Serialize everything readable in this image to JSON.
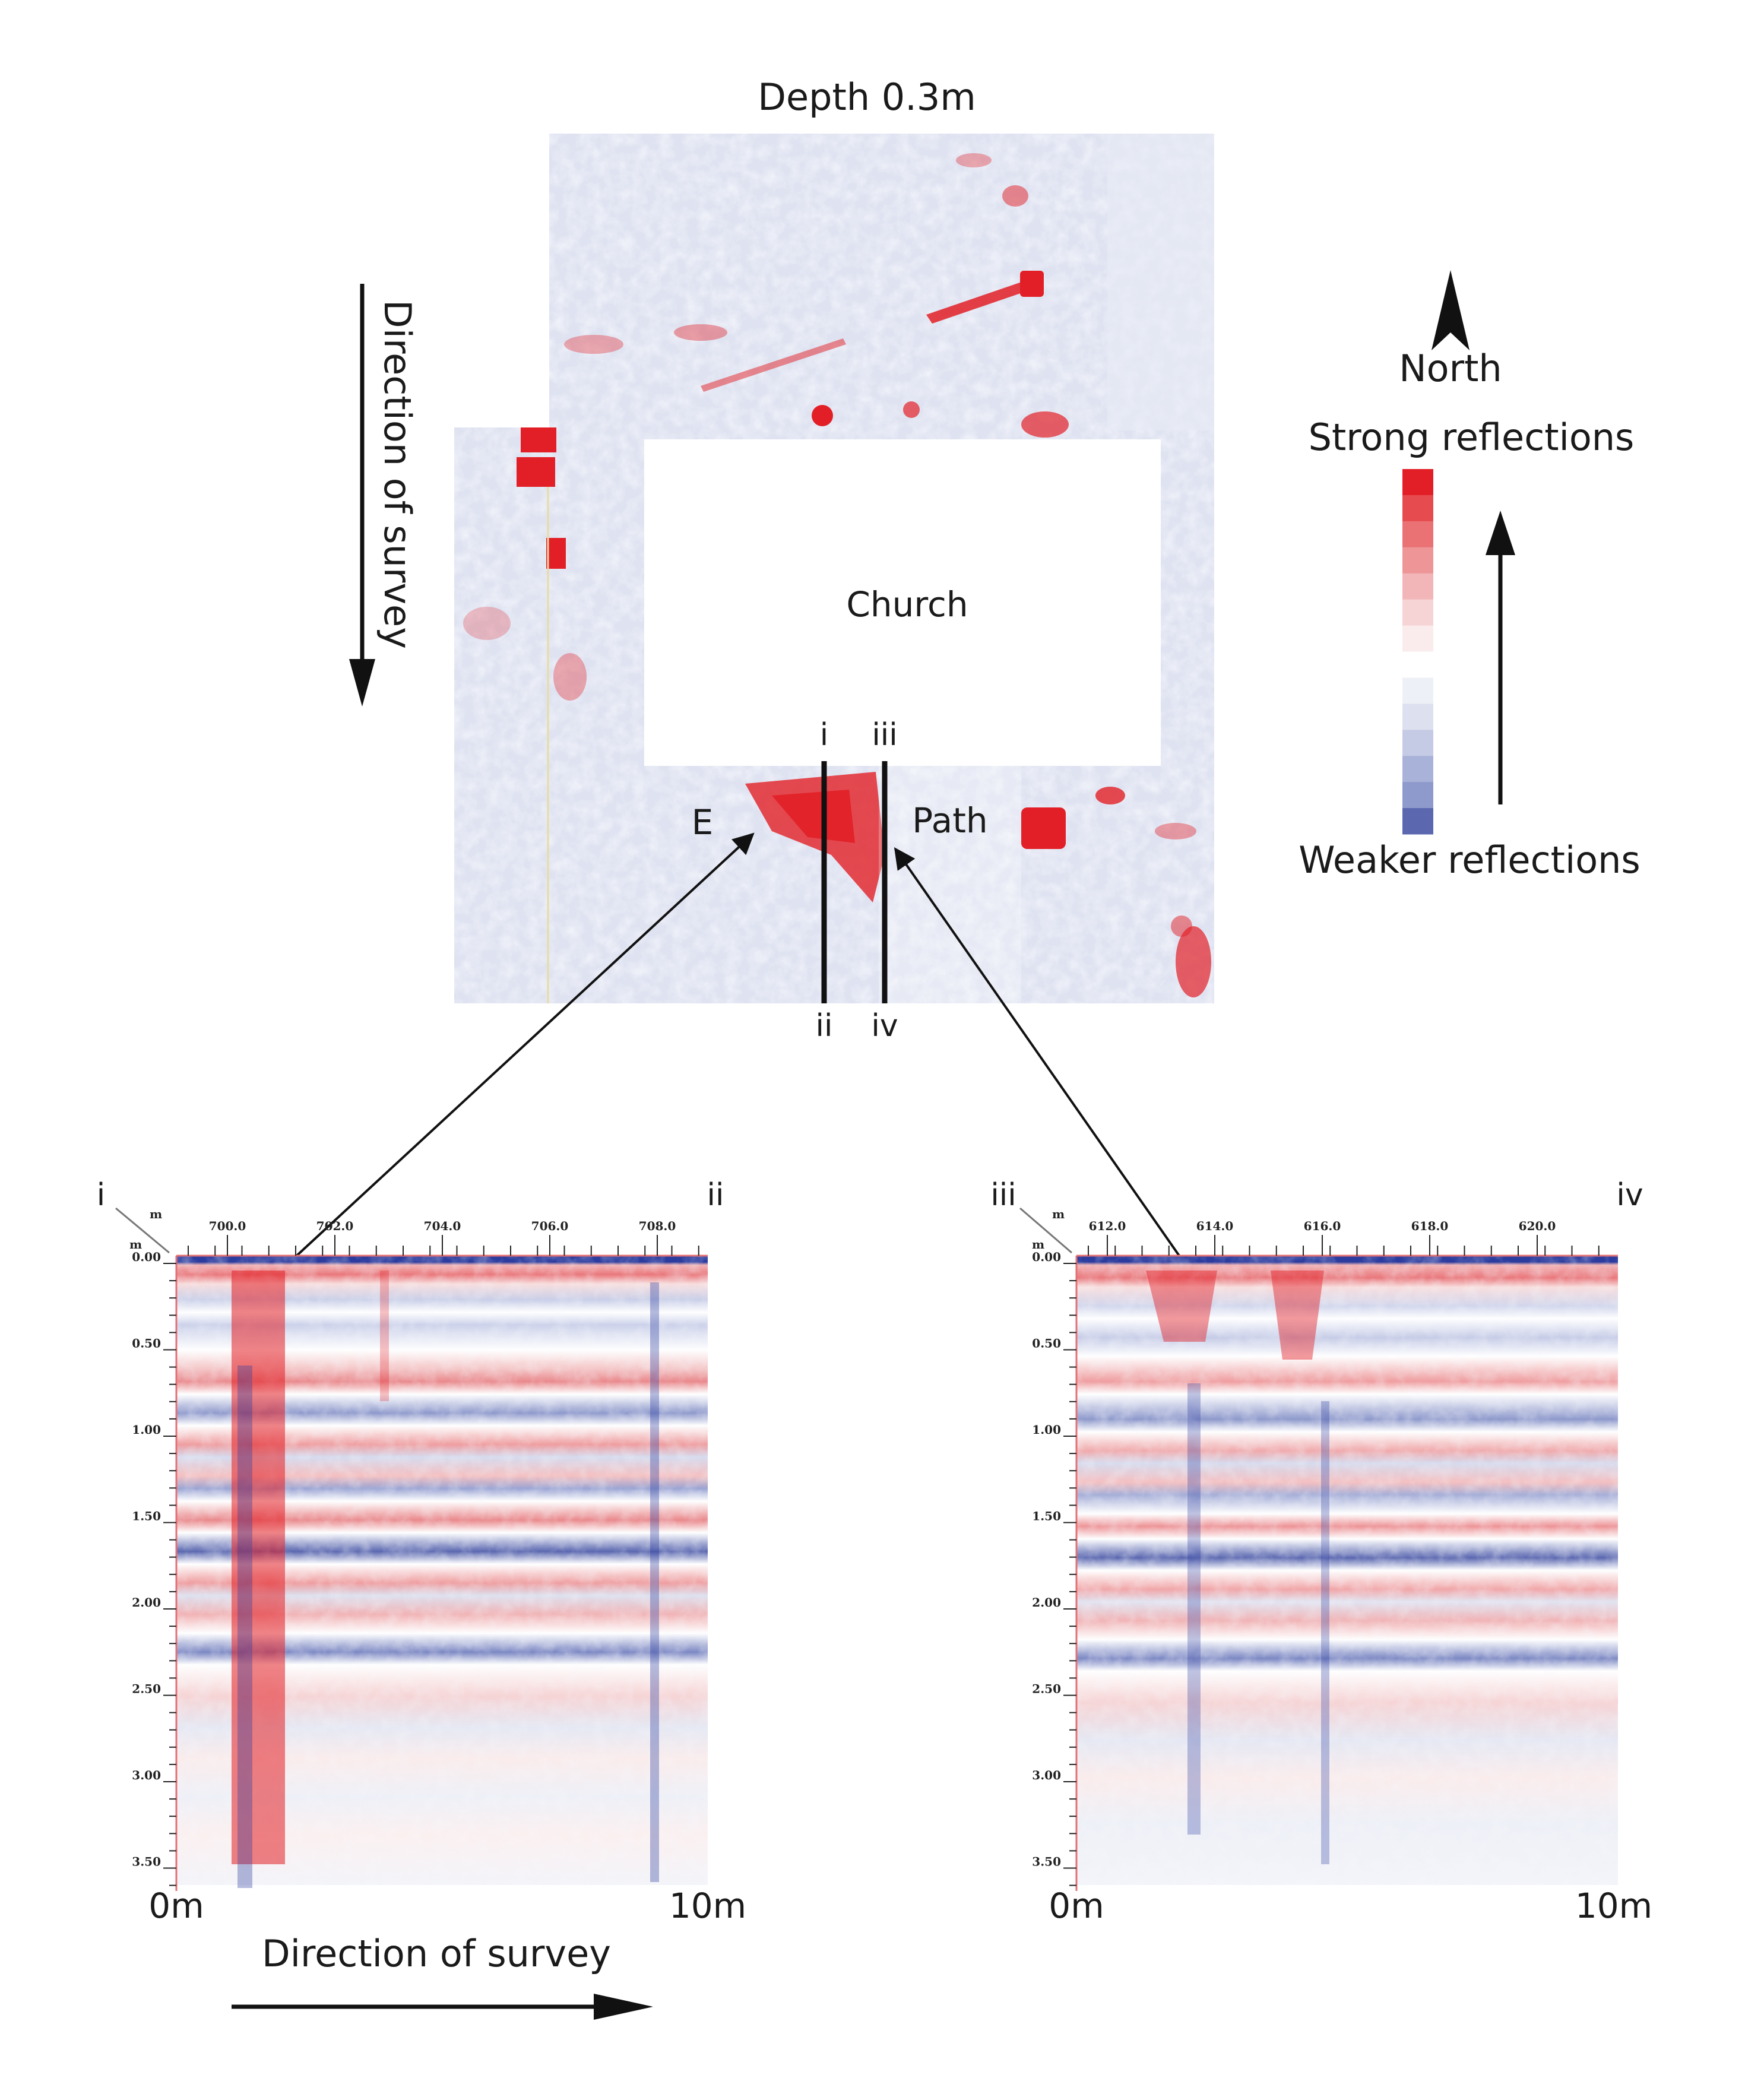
{
  "map": {
    "title": "Depth 0.3m",
    "church_label": "Church",
    "path_label": "Path",
    "e_label": "E",
    "direction_label": "Direction of survey",
    "line_labels": {
      "i": "i",
      "ii": "ii",
      "iii": "iii",
      "iv": "iv"
    }
  },
  "legend": {
    "north": "North",
    "strong": "Strong reflections",
    "weaker": "Weaker reflections",
    "swatches": [
      "#e21f26",
      "#e64b4f",
      "#ea7174",
      "#ee9597",
      "#f2b6b8",
      "#f6d4d5",
      "#faecec",
      "#ffffff",
      "#eef0f7",
      "#dde1ef",
      "#c5cbe4",
      "#a9b2d8",
      "#8f9acc",
      "#5b68b0"
    ]
  },
  "profile_left": {
    "start_label": "i",
    "end_label": "ii",
    "unit_x": "m",
    "unit_y": "m",
    "x_ticks": [
      "700.0",
      "702.0",
      "704.0",
      "706.0",
      "708.0"
    ],
    "y_ticks": [
      "0.00",
      "0.50",
      "1.00",
      "1.50",
      "2.00",
      "2.50",
      "3.00",
      "3.50"
    ],
    "axis_start": "0m",
    "axis_end": "10m"
  },
  "profile_right": {
    "start_label": "iii",
    "end_label": "iv",
    "unit_x": "m",
    "unit_y": "m",
    "x_ticks": [
      "612.0",
      "614.0",
      "616.0",
      "618.0",
      "620.0"
    ],
    "y_ticks": [
      "0.00",
      "0.50",
      "1.00",
      "1.50",
      "2.00",
      "2.50",
      "3.00",
      "3.50"
    ],
    "axis_start": "0m",
    "axis_end": "10m"
  },
  "bottom_direction_label": "Direction of survey",
  "colors": {
    "red": "#e21f26",
    "blue": "#2b3c9e",
    "pale_blue": "#dde2f0"
  }
}
